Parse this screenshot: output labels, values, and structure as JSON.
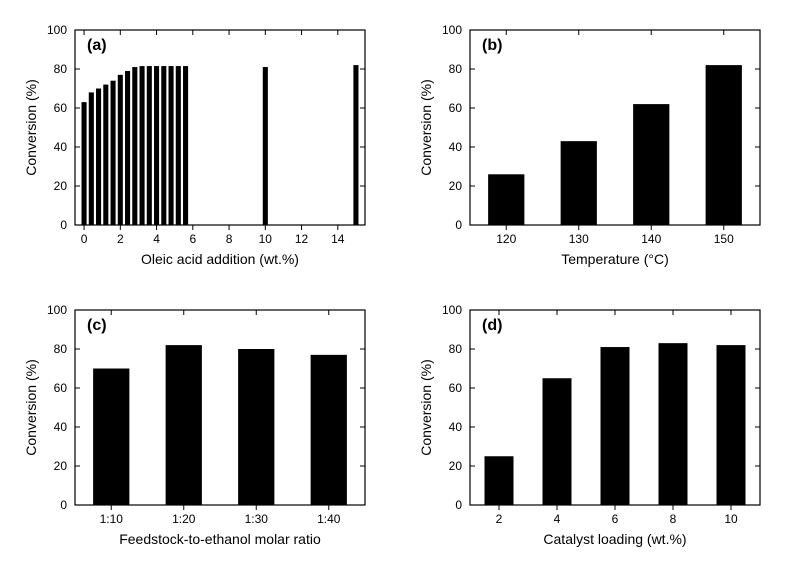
{
  "global": {
    "bg": "#ffffff",
    "axis_color": "#000000",
    "bar_color": "#000000",
    "tick_font_size": 12,
    "label_font_size": 14,
    "panel_label_font_size": 16,
    "panel_label_weight": "bold",
    "font_family": "Arial, sans-serif"
  },
  "panels": {
    "a": {
      "type": "bar",
      "panel_label": "(a)",
      "xlabel": "Oleic acid addition (wt.%)",
      "ylabel": "Conversion (%)",
      "ylim": [
        0,
        100
      ],
      "ytick_step": 20,
      "xlim": [
        -0.5,
        15.5
      ],
      "xticks": [
        0,
        2,
        4,
        6,
        8,
        10,
        12,
        14
      ],
      "bar_width": 0.28,
      "data": [
        {
          "x": 0.0,
          "y": 63
        },
        {
          "x": 0.4,
          "y": 68
        },
        {
          "x": 0.8,
          "y": 70
        },
        {
          "x": 1.2,
          "y": 72
        },
        {
          "x": 1.6,
          "y": 74
        },
        {
          "x": 2.0,
          "y": 77
        },
        {
          "x": 2.4,
          "y": 79
        },
        {
          "x": 2.8,
          "y": 81
        },
        {
          "x": 3.2,
          "y": 81.5
        },
        {
          "x": 3.6,
          "y": 81.5
        },
        {
          "x": 4.0,
          "y": 81.5
        },
        {
          "x": 4.4,
          "y": 81.5
        },
        {
          "x": 4.8,
          "y": 81.5
        },
        {
          "x": 5.2,
          "y": 81.5
        },
        {
          "x": 5.6,
          "y": 81.5
        },
        {
          "x": 10.0,
          "y": 81
        },
        {
          "x": 15.0,
          "y": 82
        }
      ]
    },
    "b": {
      "type": "bar",
      "panel_label": "(b)",
      "xlabel": "Temperature (°C)",
      "ylabel": "Conversion (%)",
      "ylim": [
        0,
        100
      ],
      "ytick_step": 20,
      "categories": [
        "120",
        "130",
        "140",
        "150"
      ],
      "values": [
        26,
        43,
        62,
        82
      ],
      "bar_width": 0.5
    },
    "c": {
      "type": "bar",
      "panel_label": "(c)",
      "xlabel": "Feedstock-to-ethanol molar ratio",
      "ylabel": "Conversion (%)",
      "ylim": [
        0,
        100
      ],
      "ytick_step": 20,
      "categories": [
        "1:10",
        "1:20",
        "1:30",
        "1:40"
      ],
      "values": [
        70,
        82,
        80,
        77
      ],
      "bar_width": 0.5
    },
    "d": {
      "type": "bar",
      "panel_label": "(d)",
      "xlabel": "Catalyst loading (wt.%)",
      "ylabel": "Conversion (%)",
      "ylim": [
        0,
        100
      ],
      "ytick_step": 20,
      "categories": [
        "2",
        "4",
        "6",
        "8",
        "10"
      ],
      "values": [
        25,
        65,
        81,
        83,
        82
      ],
      "bar_width": 0.5
    }
  }
}
